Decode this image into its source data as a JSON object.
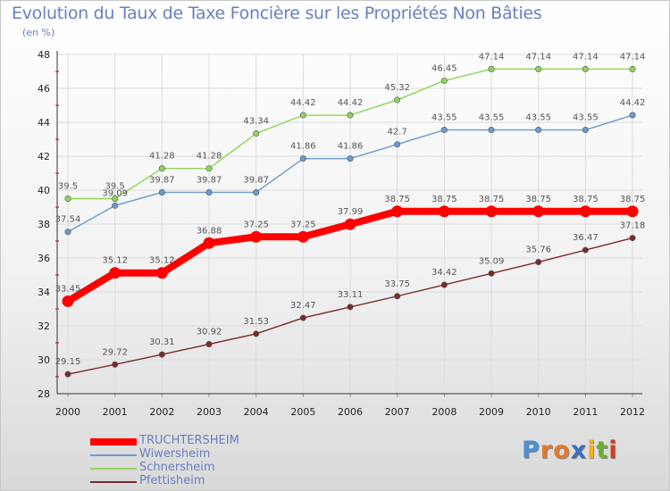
{
  "title": "Evolution du Taux de Taxe Foncière sur les Propriétés Non Bâties",
  "subtitle": "(en %)",
  "logo_letters": [
    {
      "ch": "P",
      "color": "#4a8fd6"
    },
    {
      "ch": "r",
      "color": "#e07a2a"
    },
    {
      "ch": "o",
      "color": "#e07a2a"
    },
    {
      "ch": "x",
      "color": "#3a6fc0"
    },
    {
      "ch": "i",
      "color": "#f0b020"
    },
    {
      "ch": "t",
      "color": "#6ab030"
    },
    {
      "ch": "i",
      "color": "#d04020"
    }
  ],
  "chart_data": {
    "type": "line",
    "title": "Evolution du Taux de Taxe Foncière sur les Propriétés Non Bâties",
    "ylabel": "(en %)",
    "xlabel": "",
    "ylim": [
      28,
      48
    ],
    "yticks": [
      28,
      30,
      32,
      34,
      36,
      38,
      40,
      42,
      44,
      46,
      48
    ],
    "grid": true,
    "legend_position": "bottom-left",
    "categories": [
      "2000",
      "2001",
      "2002",
      "2003",
      "2004",
      "2005",
      "2006",
      "2007",
      "2008",
      "2009",
      "2010",
      "2011",
      "2012"
    ],
    "series": [
      {
        "name": "TRUCHTERSHEIM",
        "color": "#ff0000",
        "values": [
          33.45,
          35.12,
          35.12,
          36.88,
          37.25,
          37.25,
          37.99,
          38.75,
          38.75,
          38.75,
          38.75,
          38.75,
          38.75
        ]
      },
      {
        "name": "Wiwersheim",
        "color": "#6a9bd0",
        "values": [
          37.54,
          39.09,
          39.87,
          39.87,
          39.87,
          41.86,
          41.86,
          42.7,
          43.55,
          43.55,
          43.55,
          43.55,
          44.42
        ]
      },
      {
        "name": "Schnersheim",
        "color": "#8fd45a",
        "values": [
          39.5,
          39.5,
          41.28,
          41.28,
          43.34,
          44.42,
          44.42,
          45.32,
          46.45,
          47.14,
          47.14,
          47.14,
          47.14
        ]
      },
      {
        "name": "Pfettisheim",
        "color": "#7a2a2a",
        "values": [
          29.15,
          29.72,
          30.31,
          30.92,
          31.53,
          32.47,
          33.11,
          33.75,
          34.42,
          35.09,
          35.76,
          36.47,
          37.18
        ]
      }
    ]
  }
}
